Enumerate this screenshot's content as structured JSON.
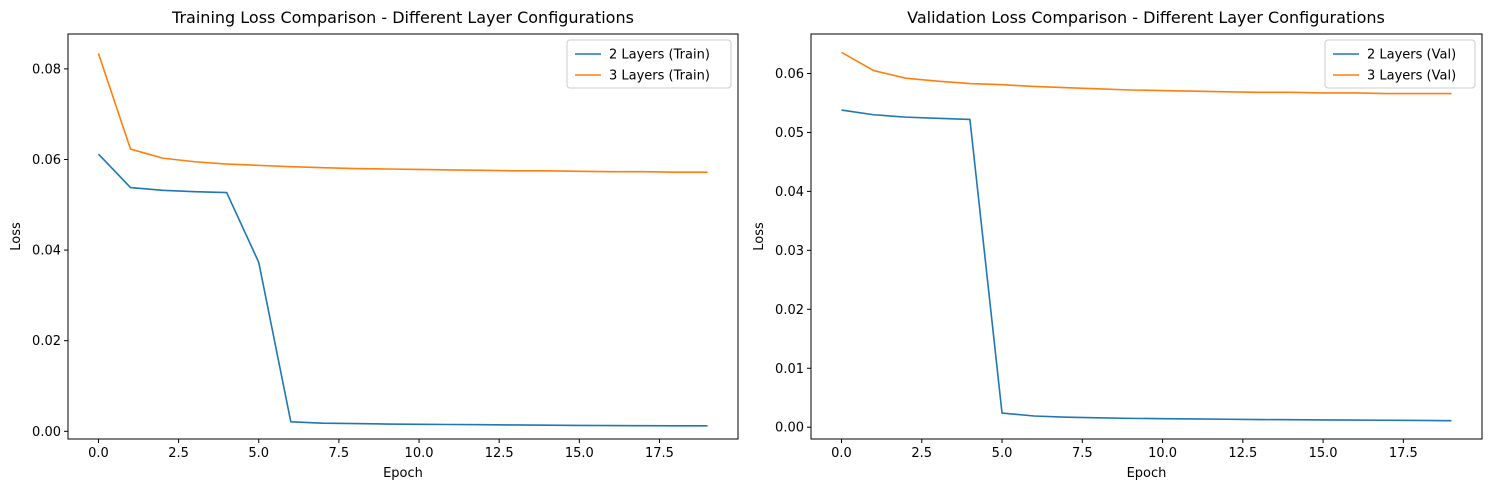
{
  "chart_data": [
    {
      "type": "line",
      "title": "Training Loss Comparison - Different Layer Configurations",
      "xlabel": "Epoch",
      "ylabel": "Loss",
      "xlim": [
        -0.95,
        19.95
      ],
      "ylim": [
        -0.0017,
        0.0877
      ],
      "xticks": [
        0.0,
        2.5,
        5.0,
        7.5,
        10.0,
        12.5,
        15.0,
        17.5
      ],
      "xtick_labels": [
        "0.0",
        "2.5",
        "5.0",
        "7.5",
        "10.0",
        "12.5",
        "15.0",
        "17.5"
      ],
      "yticks": [
        0.0,
        0.02,
        0.04,
        0.06,
        0.08
      ],
      "ytick_labels": [
        "0.00",
        "0.02",
        "0.04",
        "0.06",
        "0.08"
      ],
      "grid": false,
      "legend_position": "top-right",
      "x": [
        0,
        1,
        2,
        3,
        4,
        5,
        6,
        7,
        8,
        9,
        10,
        11,
        12,
        13,
        14,
        15,
        16,
        17,
        18,
        19
      ],
      "series": [
        {
          "name": "2 Layers (Train)",
          "color": "#1f77b4",
          "values": [
            0.0612,
            0.0538,
            0.0532,
            0.0529,
            0.0527,
            0.0373,
            0.0021,
            0.0018,
            0.0017,
            0.0016,
            0.00155,
            0.0015,
            0.00145,
            0.0014,
            0.00135,
            0.0013,
            0.00127,
            0.00124,
            0.00121,
            0.0012
          ]
        },
        {
          "name": "3 Layers (Train)",
          "color": "#ff7f0e",
          "values": [
            0.0834,
            0.0623,
            0.0603,
            0.0595,
            0.059,
            0.0587,
            0.0584,
            0.0582,
            0.058,
            0.0579,
            0.0578,
            0.0577,
            0.0576,
            0.0575,
            0.0575,
            0.0574,
            0.0573,
            0.0573,
            0.0572,
            0.0572
          ]
        }
      ]
    },
    {
      "type": "line",
      "title": "Validation Loss Comparison - Different Layer Configurations",
      "xlabel": "Epoch",
      "ylabel": "Loss",
      "xlim": [
        -0.95,
        19.95
      ],
      "ylim": [
        -0.002,
        0.0667
      ],
      "xticks": [
        0.0,
        2.5,
        5.0,
        7.5,
        10.0,
        12.5,
        15.0,
        17.5
      ],
      "xtick_labels": [
        "0.0",
        "2.5",
        "5.0",
        "7.5",
        "10.0",
        "12.5",
        "15.0",
        "17.5"
      ],
      "yticks": [
        0.0,
        0.01,
        0.02,
        0.03,
        0.04,
        0.05,
        0.06
      ],
      "ytick_labels": [
        "0.00",
        "0.01",
        "0.02",
        "0.03",
        "0.04",
        "0.05",
        "0.06"
      ],
      "grid": false,
      "legend_position": "top-right",
      "x": [
        0,
        1,
        2,
        3,
        4,
        5,
        6,
        7,
        8,
        9,
        10,
        11,
        12,
        13,
        14,
        15,
        16,
        17,
        18,
        19
      ],
      "series": [
        {
          "name": "2 Layers (Val)",
          "color": "#1f77b4",
          "values": [
            0.0538,
            0.053,
            0.0526,
            0.0524,
            0.0522,
            0.0024,
            0.0019,
            0.0017,
            0.0016,
            0.0015,
            0.00145,
            0.0014,
            0.00135,
            0.0013,
            0.00127,
            0.00124,
            0.00121,
            0.00118,
            0.00115,
            0.0011
          ]
        },
        {
          "name": "3 Layers (Val)",
          "color": "#ff7f0e",
          "values": [
            0.0636,
            0.0605,
            0.0592,
            0.0587,
            0.0583,
            0.0581,
            0.0578,
            0.0576,
            0.0574,
            0.0572,
            0.0571,
            0.057,
            0.0569,
            0.0568,
            0.0568,
            0.0567,
            0.0567,
            0.0566,
            0.0566,
            0.0566
          ]
        }
      ]
    }
  ]
}
